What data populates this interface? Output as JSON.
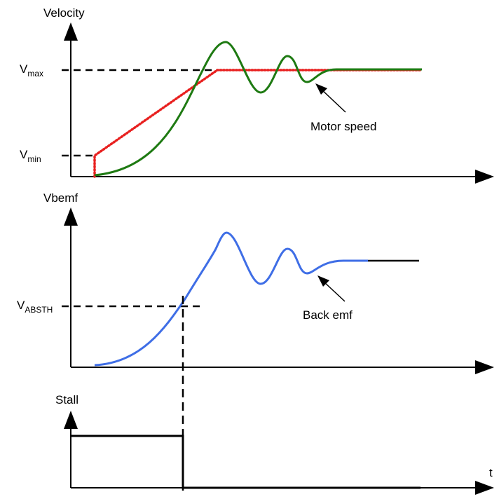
{
  "diagram": {
    "velocity_panel": {
      "axis_label": "Velocity",
      "vmax_label": {
        "main": "V",
        "sub": "max"
      },
      "vmin_label": {
        "main": "V",
        "sub": "min"
      },
      "annotation": "Motor speed"
    },
    "bemf_panel": {
      "axis_label": "Vbemf",
      "threshold_label": {
        "main": "V",
        "sub": "ABSTH"
      },
      "annotation": "Back emf"
    },
    "stall_panel": {
      "axis_label": "Stall",
      "time_label": "t"
    },
    "colors": {
      "axes": "#000000",
      "commanded_speed": "#e8201f",
      "motor_speed": "#1e7a12",
      "back_emf": "#3f6ee6"
    }
  }
}
